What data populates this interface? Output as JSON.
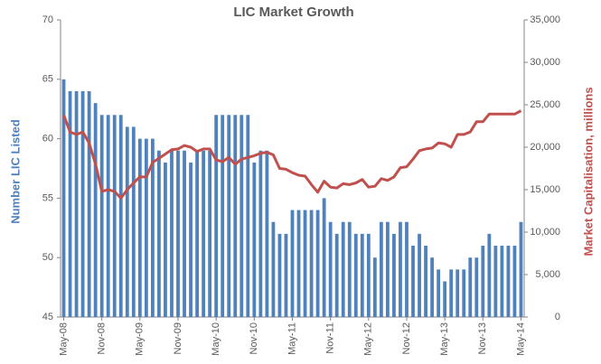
{
  "chart_data": {
    "type": "bar_line",
    "title": "LIC Market Growth",
    "y_label": "Number LIC Listed",
    "y2_label": "Market Capitalisation, millions",
    "categories": [
      "May-08",
      null,
      null,
      null,
      null,
      null,
      "Nov-08",
      null,
      null,
      null,
      null,
      null,
      "May-09",
      null,
      null,
      null,
      null,
      null,
      "Nov-09",
      null,
      null,
      null,
      null,
      null,
      "May-10",
      null,
      null,
      null,
      null,
      null,
      "Nov-10",
      null,
      null,
      null,
      null,
      null,
      "May-11",
      null,
      null,
      null,
      null,
      null,
      "Nov-11",
      null,
      null,
      null,
      null,
      null,
      "May-12",
      null,
      null,
      null,
      null,
      null,
      "Nov-12",
      null,
      null,
      null,
      null,
      null,
      "May-13",
      null,
      null,
      null,
      null,
      null,
      "Nov-13",
      null,
      null,
      null,
      null,
      null,
      "May-14"
    ],
    "series": [
      {
        "name": "Number LIC Listed",
        "type": "bar",
        "color": "#4f81bd",
        "values": [
          65,
          64,
          64,
          64,
          64,
          63,
          62,
          62,
          62,
          62,
          61,
          61,
          60,
          60,
          60,
          59,
          58,
          59,
          59,
          59,
          58,
          59,
          59,
          59,
          62,
          62,
          62,
          62,
          62,
          62,
          58,
          59,
          59,
          53,
          52,
          52,
          54,
          54,
          54,
          54,
          54,
          55,
          53,
          52,
          53,
          53,
          52,
          52,
          52,
          50,
          53,
          53,
          52,
          53,
          53,
          51,
          52,
          51,
          50,
          49,
          48,
          49,
          49,
          49,
          50,
          50,
          51,
          52,
          51,
          51,
          51,
          51,
          53
        ]
      },
      {
        "name": "Market Capitalisation, millions",
        "type": "line",
        "axis": "y2",
        "color": "#c0504d",
        "values": [
          23800,
          21800,
          21500,
          21800,
          20500,
          18000,
          14800,
          15000,
          14800,
          14000,
          15000,
          15800,
          16500,
          16500,
          18200,
          18700,
          19200,
          19700,
          19800,
          20200,
          20000,
          19500,
          19800,
          19800,
          18500,
          18300,
          18800,
          18000,
          18600,
          18800,
          19000,
          19300,
          19400,
          19100,
          17500,
          17400,
          17000,
          16700,
          16600,
          15600,
          14700,
          16000,
          15300,
          15200,
          15700,
          15600,
          15800,
          16200,
          15300,
          15400,
          16300,
          16100,
          16500,
          17600,
          17700,
          18600,
          19600,
          19800,
          19900,
          20500,
          20400,
          20000,
          21500,
          21500,
          21800,
          23000,
          23000,
          23900,
          23900,
          23900,
          23900,
          23900,
          24300
        ]
      }
    ],
    "ylim": [
      45,
      70
    ],
    "yticks": [
      45,
      50,
      55,
      60,
      65,
      70
    ],
    "y2lim": [
      0,
      35000
    ],
    "y2ticks": [
      0,
      {
        "value": 5000,
        "label": "5,000"
      },
      {
        "value": 10000,
        "label": "10,000"
      },
      {
        "value": 15000,
        "label": "15,000"
      },
      {
        "value": 20000,
        "label": "20,000"
      },
      {
        "value": 25000,
        "label": "25,000"
      },
      {
        "value": 30000,
        "label": "30,000"
      },
      {
        "value": 35000,
        "label": "35,000"
      }
    ]
  }
}
